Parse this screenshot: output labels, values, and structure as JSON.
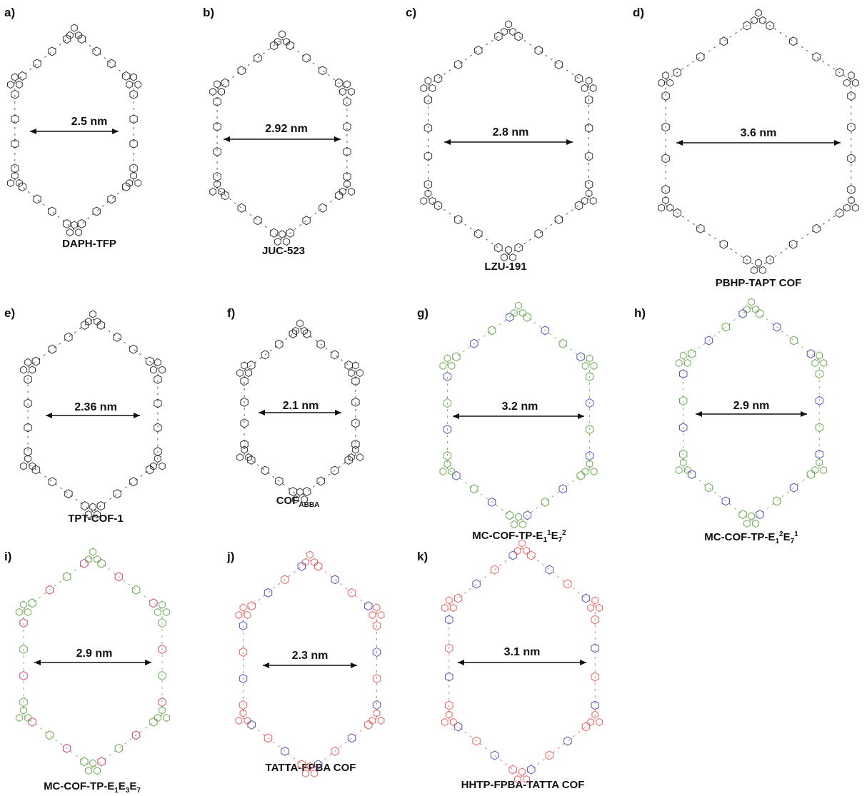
{
  "panels": [
    {
      "label": "a)",
      "dimension": "2.5 nm",
      "name": "DAPH-TFP",
      "palette": "mono"
    },
    {
      "label": "b)",
      "dimension": "2.92 nm",
      "name": "JUC-523",
      "palette": "mono"
    },
    {
      "label": "c)",
      "dimension": "2.8 nm",
      "name": "LZU-191",
      "palette": "mono"
    },
    {
      "label": "d)",
      "dimension": "3.6 nm",
      "name": "PBHP-TAPT COF",
      "palette": "mono"
    },
    {
      "label": "e)",
      "dimension": "2.36 nm",
      "name": "TPT-COF-1",
      "palette": "mono"
    },
    {
      "label": "f)",
      "dimension": "2.1 nm",
      "name_base": "COF",
      "name_sub": "ABBA",
      "palette": "mono"
    },
    {
      "label": "g)",
      "dimension": "3.2 nm",
      "name_parts": [
        "MC-COF-TP-E",
        "1",
        "1",
        "E",
        "7",
        "2"
      ],
      "palette": "green-blue"
    },
    {
      "label": "h)",
      "dimension": "2.9 nm",
      "name_parts": [
        "MC-COF-TP-E",
        "1",
        "2",
        "E",
        "7",
        "1"
      ],
      "palette": "green-blue"
    },
    {
      "label": "i)",
      "dimension": "2.9 nm",
      "name_parts": [
        "MC-COF-TP-E",
        "1",
        "E",
        "3",
        "E",
        "7"
      ],
      "palette": "green-pink"
    },
    {
      "label": "j)",
      "dimension": "2.3 nm",
      "name": "TATTA-FPBA COF",
      "palette": "red-blue"
    },
    {
      "label": "k)",
      "dimension": "3.1 nm",
      "name": "HHTP-FPBA-TATTA COF",
      "palette": "red-blue"
    }
  ],
  "palettes": {
    "mono": "#333333",
    "green-blue": "#6aa84f",
    "green-pink": "#6aa84f",
    "red-blue": "#e06060",
    "accent_blue": "#5050b8",
    "accent_pink": "#d04080"
  }
}
